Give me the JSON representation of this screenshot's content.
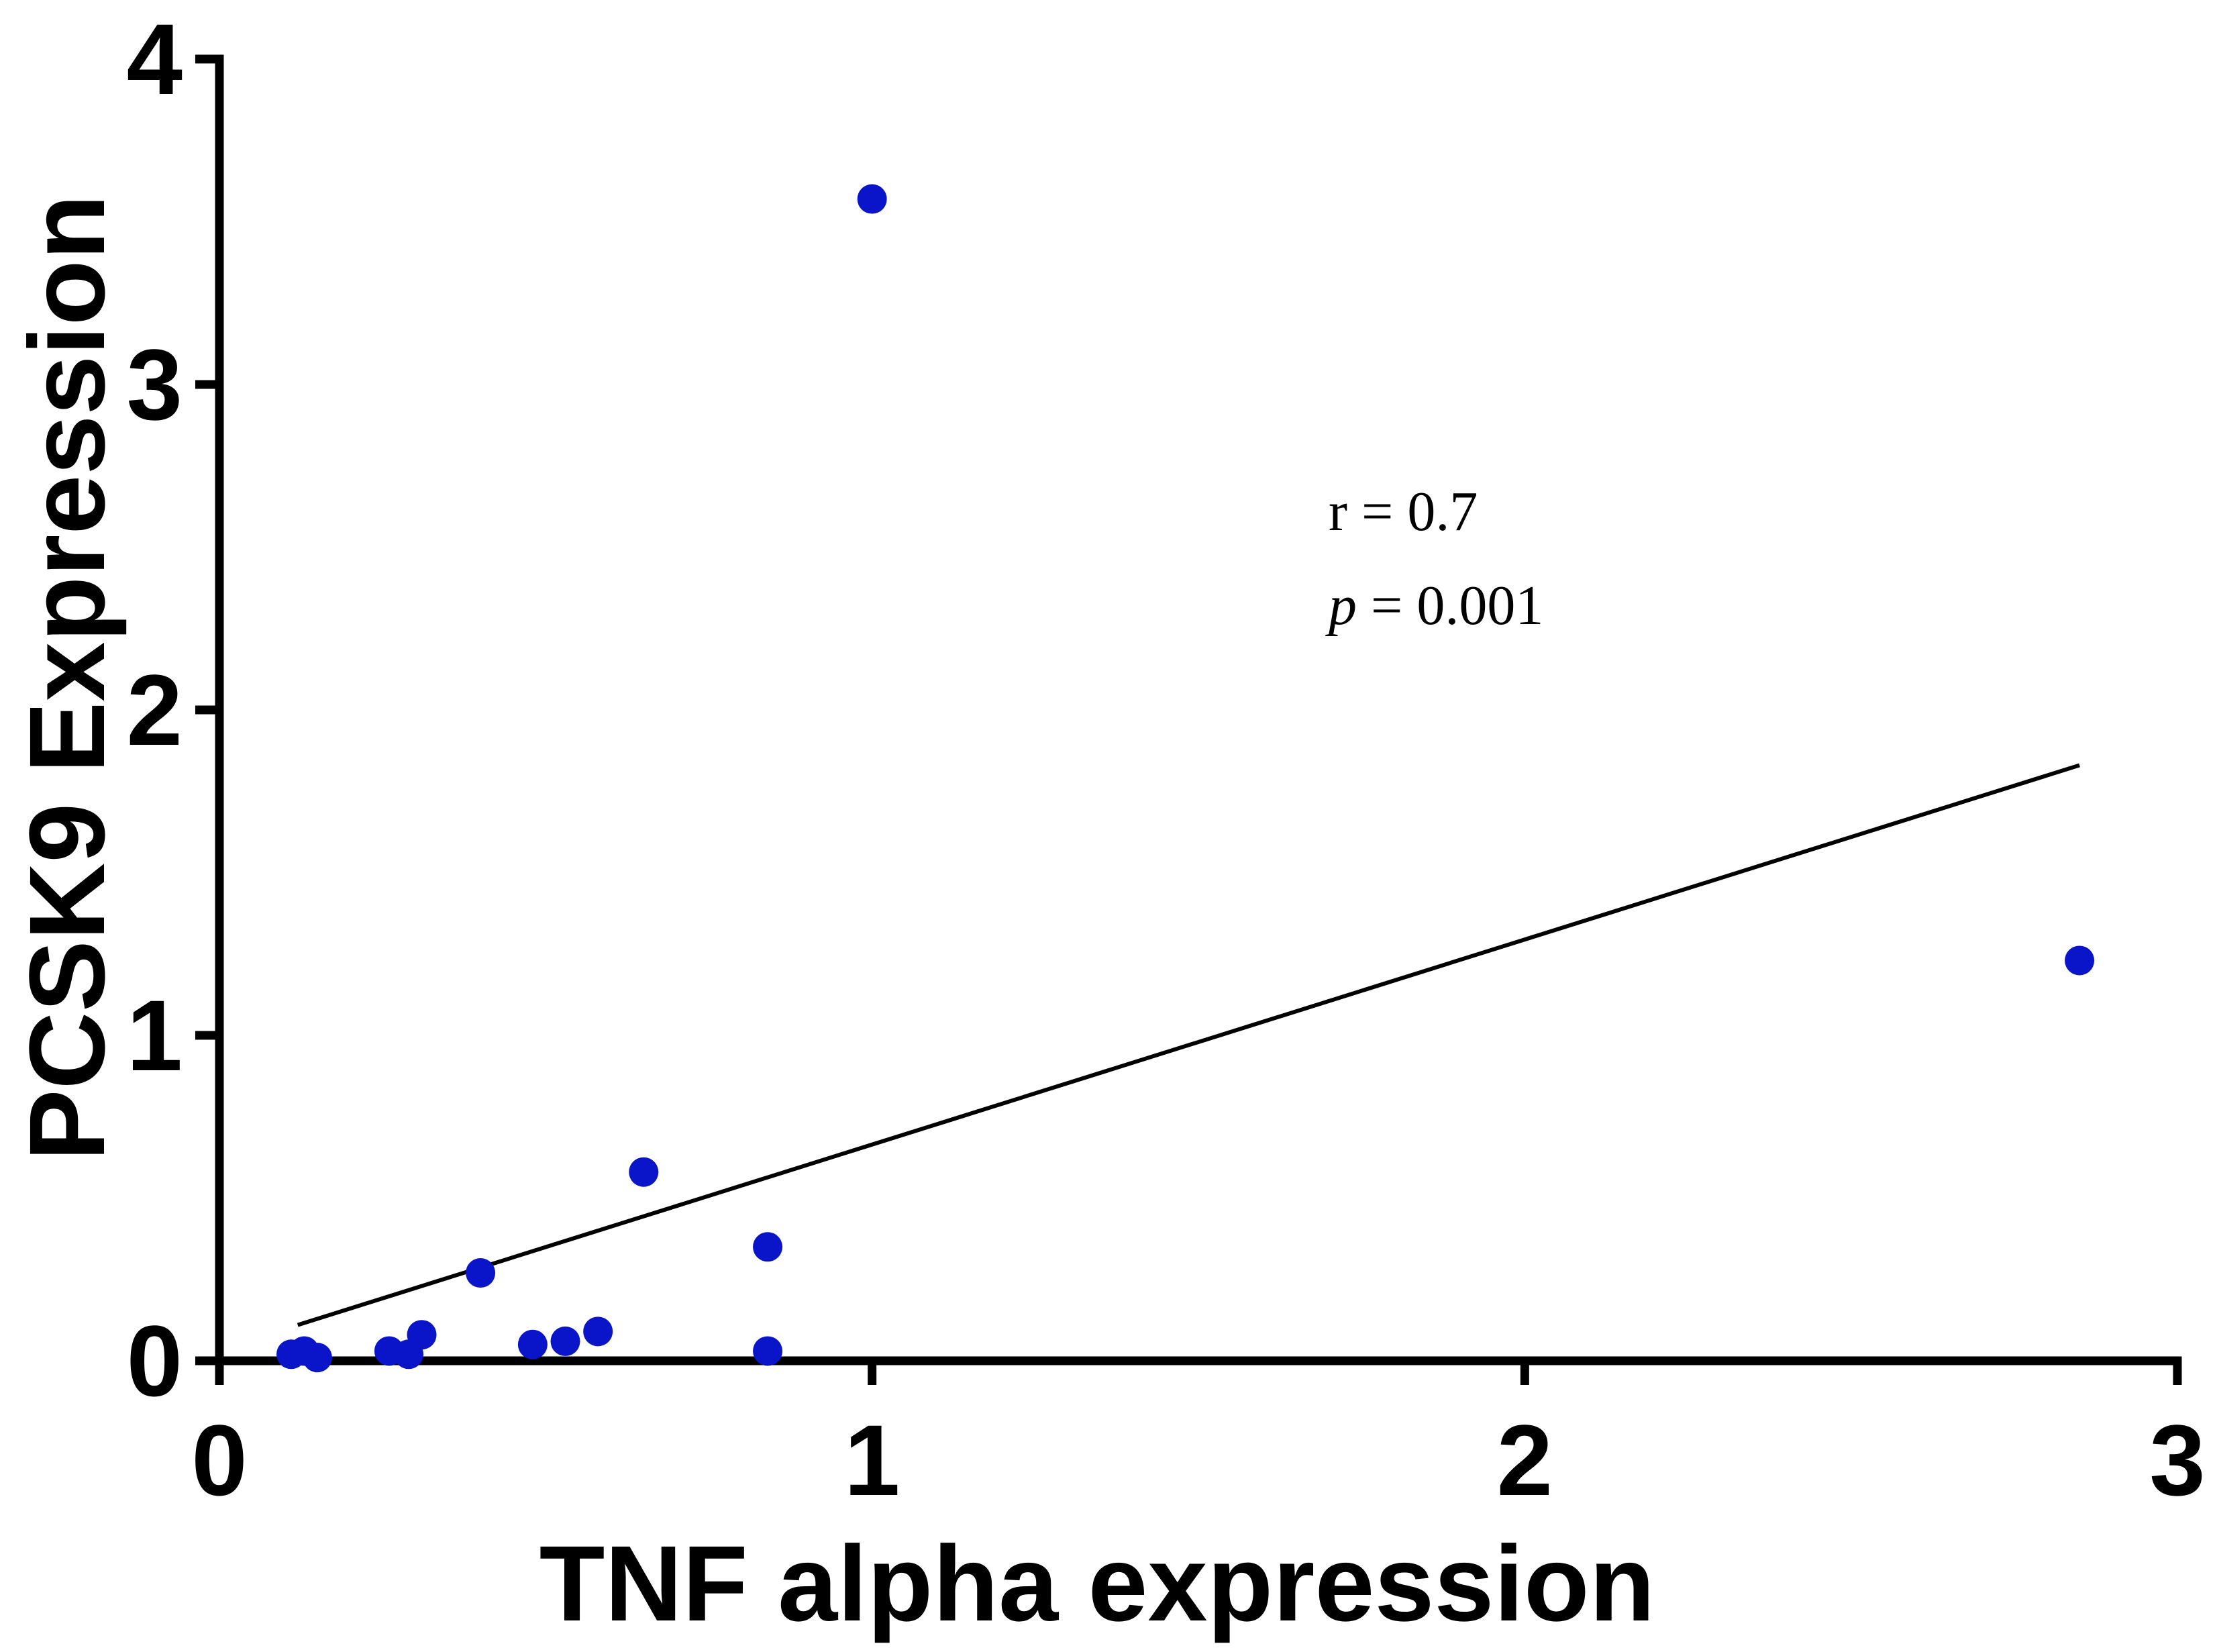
{
  "chart_data": {
    "type": "scatter",
    "xlabel": "TNF alpha expression",
    "ylabel": "PCSK9 Expression",
    "xlim": [
      0,
      3
    ],
    "ylim": [
      0,
      4
    ],
    "x_ticks": [
      "0",
      "1",
      "2",
      "3"
    ],
    "y_ticks": [
      "0",
      "1",
      "2",
      "3",
      "4"
    ],
    "grid": false,
    "legend": "none",
    "point_color": "#0a14c8",
    "line_color": "#000000",
    "points": [
      {
        "x": 0.11,
        "y": 0.02
      },
      {
        "x": 0.13,
        "y": 0.03
      },
      {
        "x": 0.15,
        "y": 0.01
      },
      {
        "x": 0.26,
        "y": 0.03
      },
      {
        "x": 0.29,
        "y": 0.02
      },
      {
        "x": 0.31,
        "y": 0.08
      },
      {
        "x": 0.4,
        "y": 0.27
      },
      {
        "x": 0.48,
        "y": 0.05
      },
      {
        "x": 0.53,
        "y": 0.06
      },
      {
        "x": 0.58,
        "y": 0.09
      },
      {
        "x": 0.65,
        "y": 0.58
      },
      {
        "x": 0.84,
        "y": 0.35
      },
      {
        "x": 0.84,
        "y": 0.03
      },
      {
        "x": 1.0,
        "y": 3.57
      },
      {
        "x": 2.85,
        "y": 1.23
      }
    ],
    "regression_line": {
      "x1": 0.12,
      "y1": 0.11,
      "x2": 2.85,
      "y2": 1.83
    },
    "annotations": {
      "r_text": "r = 0.7",
      "p_symbol": "p",
      "p_rest": " = 0.001"
    }
  }
}
